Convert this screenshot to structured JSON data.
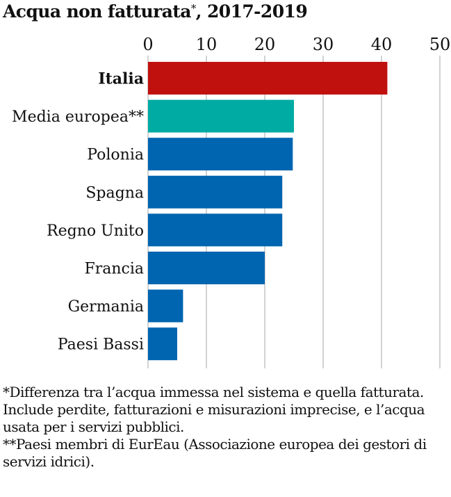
{
  "chart_data": {
    "type": "bar",
    "orientation": "horizontal",
    "title": "Acqua non fatturata",
    "title_marker": "*",
    "title_suffix": ", 2017-2019",
    "xlim": [
      0,
      50
    ],
    "x_ticks": [
      0,
      10,
      20,
      30,
      40,
      50
    ],
    "x_axis_position": "top",
    "grid": true,
    "categories": [
      "Italia",
      "Media europea**",
      "Polonia",
      "Spagna",
      "Regno Unito",
      "Francia",
      "Germania",
      "Paesi Bassi"
    ],
    "values": [
      41,
      25,
      24.8,
      23,
      23,
      20,
      6,
      5
    ],
    "highlight": "Italia",
    "colors": {
      "highlight": "#c0110f",
      "average": "#00aba3",
      "default": "#0065b0"
    }
  },
  "footnotes": [
    "*Differenza tra l’acqua immessa nel sistema e quella fatturata. Include perdite, fatturazioni e misurazioni imprecise, e l’acqua usata per i servizi pubblici.",
    "**Paesi membri di EurEau (Associazione europea dei gestori di servizi idrici)."
  ]
}
